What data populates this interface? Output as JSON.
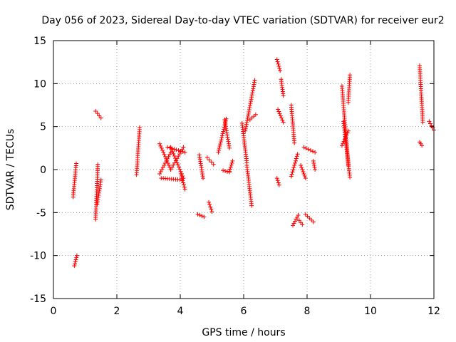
{
  "chart_data": {
    "type": "scatter",
    "title": "Day 056 of 2023, Sidereal Day-to-day VTEC variation (SDTVAR) for receiver eur2",
    "xlabel": "GPS time / hours",
    "ylabel": "SDTVAR / TECUs",
    "xlim": [
      0,
      12
    ],
    "ylim": [
      -15,
      15
    ],
    "xticks": [
      0,
      2,
      4,
      6,
      8,
      10,
      12
    ],
    "yticks": [
      -15,
      -10,
      -5,
      0,
      5,
      10,
      15
    ],
    "xtick_labels": [
      "0",
      "2",
      "4",
      "6",
      "8",
      "10",
      "12"
    ],
    "ytick_labels": [
      "-15",
      "-10",
      "-5",
      "0",
      "5",
      "10",
      "15"
    ],
    "grid": true,
    "marker": "plus",
    "color": "#ff0000",
    "segments": [
      {
        "x": [
          0.62,
          0.72
        ],
        "y": [
          -3.2,
          0.7
        ]
      },
      {
        "x": [
          0.66,
          0.74
        ],
        "y": [
          -11.2,
          -10.0
        ]
      },
      {
        "x": [
          1.33,
          1.4
        ],
        "y": [
          -5.8,
          0.6
        ]
      },
      {
        "x": [
          1.38,
          1.5
        ],
        "y": [
          -4.0,
          -1.2
        ]
      },
      {
        "x": [
          1.33,
          1.5
        ],
        "y": [
          6.8,
          6.0
        ]
      },
      {
        "x": [
          2.62,
          2.72
        ],
        "y": [
          -0.6,
          4.9
        ]
      },
      {
        "x": [
          3.35,
          3.7
        ],
        "y": [
          3.0,
          0.0
        ]
      },
      {
        "x": [
          3.35,
          3.7
        ],
        "y": [
          -0.5,
          2.0
        ]
      },
      {
        "x": [
          3.7,
          4.1
        ],
        "y": [
          0.0,
          2.6
        ]
      },
      {
        "x": [
          3.7,
          4.1
        ],
        "y": [
          2.6,
          -1.0
        ]
      },
      {
        "x": [
          3.4,
          4.05
        ],
        "y": [
          -1.0,
          -1.2
        ]
      },
      {
        "x": [
          3.6,
          4.15
        ],
        "y": [
          2.6,
          2.0
        ]
      },
      {
        "x": [
          4.02,
          4.15
        ],
        "y": [
          -0.5,
          -2.3
        ]
      },
      {
        "x": [
          4.55,
          4.75
        ],
        "y": [
          -5.2,
          -5.5
        ]
      },
      {
        "x": [
          4.6,
          4.72
        ],
        "y": [
          1.7,
          -1.0
        ]
      },
      {
        "x": [
          4.85,
          5.05
        ],
        "y": [
          1.4,
          0.6
        ]
      },
      {
        "x": [
          4.9,
          5.0
        ],
        "y": [
          -3.8,
          -4.9
        ]
      },
      {
        "x": [
          5.2,
          5.45
        ],
        "y": [
          2.0,
          5.9
        ]
      },
      {
        "x": [
          5.35,
          5.55
        ],
        "y": [
          -0.1,
          -0.3
        ]
      },
      {
        "x": [
          5.4,
          5.55
        ],
        "y": [
          5.8,
          2.5
        ]
      },
      {
        "x": [
          5.55,
          5.65
        ],
        "y": [
          -0.2,
          1.0
        ]
      },
      {
        "x": [
          5.95,
          6.1
        ],
        "y": [
          5.4,
          0.8
        ]
      },
      {
        "x": [
          6.05,
          6.35
        ],
        "y": [
          4.5,
          10.4
        ]
      },
      {
        "x": [
          6.1,
          6.25
        ],
        "y": [
          0.5,
          -4.2
        ]
      },
      {
        "x": [
          6.2,
          6.38
        ],
        "y": [
          5.8,
          6.4
        ]
      },
      {
        "x": [
          7.05,
          7.15
        ],
        "y": [
          12.8,
          11.5
        ]
      },
      {
        "x": [
          7.05,
          7.12
        ],
        "y": [
          -1.0,
          -1.8
        ]
      },
      {
        "x": [
          7.08,
          7.25
        ],
        "y": [
          7.0,
          5.5
        ]
      },
      {
        "x": [
          7.18,
          7.25
        ],
        "y": [
          10.5,
          8.6
        ]
      },
      {
        "x": [
          7.5,
          7.6
        ],
        "y": [
          7.5,
          3.1
        ]
      },
      {
        "x": [
          7.5,
          7.7
        ],
        "y": [
          -0.8,
          1.8
        ]
      },
      {
        "x": [
          7.55,
          7.72
        ],
        "y": [
          -6.5,
          -5.3
        ]
      },
      {
        "x": [
          7.75,
          7.85
        ],
        "y": [
          -5.9,
          -6.4
        ]
      },
      {
        "x": [
          7.8,
          7.95
        ],
        "y": [
          0.5,
          -1.0
        ]
      },
      {
        "x": [
          7.95,
          8.2
        ],
        "y": [
          -5.2,
          -6.1
        ]
      },
      {
        "x": [
          7.9,
          8.25
        ],
        "y": [
          2.6,
          2.0
        ]
      },
      {
        "x": [
          8.2,
          8.25
        ],
        "y": [
          1.0,
          0.0
        ]
      },
      {
        "x": [
          9.1,
          9.3
        ],
        "y": [
          9.7,
          0.5
        ]
      },
      {
        "x": [
          9.15,
          9.35
        ],
        "y": [
          5.6,
          -0.9
        ]
      },
      {
        "x": [
          9.1,
          9.3
        ],
        "y": [
          2.8,
          4.5
        ]
      },
      {
        "x": [
          9.3,
          9.35
        ],
        "y": [
          7.8,
          11.0
        ]
      },
      {
        "x": [
          11.55,
          11.65
        ],
        "y": [
          12.1,
          5.5
        ]
      },
      {
        "x": [
          11.55,
          11.62
        ],
        "y": [
          3.2,
          2.8
        ]
      },
      {
        "x": [
          11.85,
          12.0
        ],
        "y": [
          5.6,
          4.6
        ]
      }
    ]
  }
}
